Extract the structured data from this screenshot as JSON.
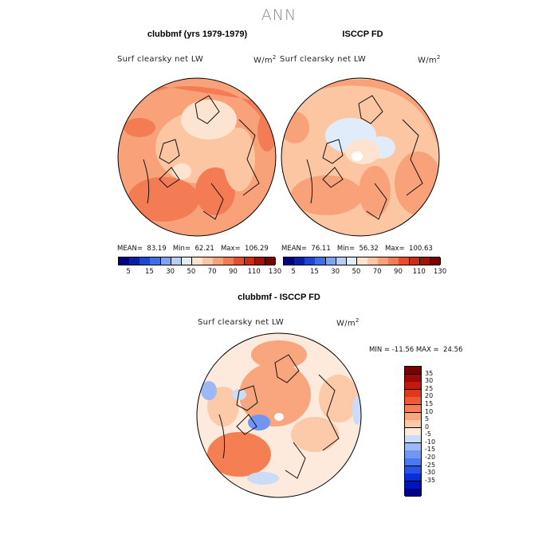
{
  "season": "ANN",
  "panels": [
    {
      "title": "clubbmf (yrs 1979-1979)",
      "variable": "Surf clearsky net LW",
      "units_base": "W/m",
      "units_exp": "2",
      "mean_label": "MEAN=",
      "mean": "83.19",
      "min_label": "Min=",
      "min": "62.21",
      "max_label": "Max=",
      "max": "106.29"
    },
    {
      "title": "ISCCP FD",
      "variable": "Surf clearsky net LW",
      "units_base": "W/m",
      "units_exp": "2",
      "mean_label": "MEAN=",
      "mean": "76.11",
      "min_label": "Min=",
      "min": "56.32",
      "max_label": "Max=",
      "max": "100.63"
    }
  ],
  "diff": {
    "title": "clubbmf - ISCCP FD",
    "variable": "Surf clearsky net LW",
    "units_base": "W/m",
    "units_exp": "2",
    "min_label": "MIN =",
    "min": "-11.56",
    "max_label": "MAX =",
    "max": "24.56"
  },
  "abs_colorbar": {
    "colors": [
      "#000080",
      "#0a1fa8",
      "#1f45d4",
      "#3f6fe8",
      "#7ea3f0",
      "#b7cff5",
      "#e1ecfb",
      "#fde4d0",
      "#fcc6a2",
      "#f9a279",
      "#f47c55",
      "#e94d2d",
      "#cf2a14",
      "#a31208",
      "#7a0000"
    ],
    "ticks": [
      "5",
      "15",
      "30",
      "50",
      "70",
      "90",
      "110",
      "130"
    ]
  },
  "diff_colorbar": {
    "colors": [
      "#00008b",
      "#0014b8",
      "#0a2ed6",
      "#2a52e6",
      "#4a78ee",
      "#6e96f2",
      "#9cb8f5",
      "#cbdcf8",
      "#fdeadc",
      "#fccaa8",
      "#f9a57d",
      "#f57f52",
      "#ef5a32",
      "#e0381c",
      "#c41a0e",
      "#9e0808",
      "#7a0000"
    ],
    "ticks": [
      "35",
      "30",
      "25",
      "20",
      "15",
      "10",
      "5",
      "0",
      "-5",
      "-10",
      "-15",
      "-20",
      "-25",
      "-30",
      "-35"
    ]
  }
}
